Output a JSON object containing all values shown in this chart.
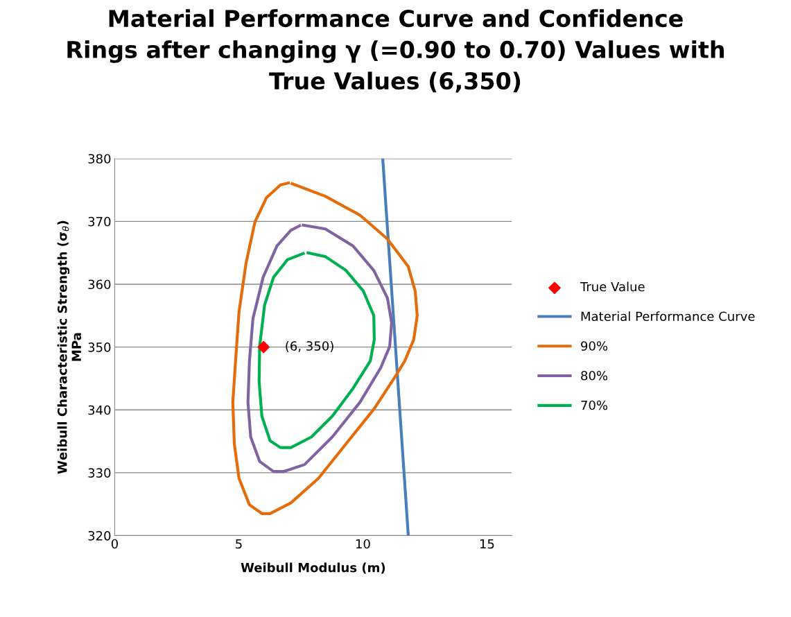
{
  "chart_data": {
    "type": "line",
    "title": "Material Performance Curve and Confidence\nRings after changing γ (=0.90 to 0.70) Values with\nTrue Values (6,350)",
    "xlabel": "Weibull Modulus (m)",
    "ylabel": "Weibull Characteristic Strength (σ$_{θ}$)\nMPa",
    "xlim": [
      0,
      16
    ],
    "xticks": [
      0,
      5,
      10,
      15
    ],
    "ylim": [
      320,
      380
    ],
    "yticks": [
      320,
      330,
      340,
      350,
      360,
      370,
      380
    ],
    "grid": "y",
    "legend": "right",
    "line_style": "solid",
    "marker": "none",
    "annotations": [
      {
        "text": "(6, 350)",
        "x": 6,
        "y": 350
      }
    ],
    "series": [
      {
        "name": "True Value",
        "type": "scatter",
        "marker": "diamond",
        "color": "#ff0000",
        "x": [
          6
        ],
        "values": [
          350
        ]
      },
      {
        "name": "Material Performance Curve",
        "color": "#4a7ebb",
        "x": [
          10.8,
          11.83
        ],
        "values": [
          380,
          320
        ]
      },
      {
        "name": "90%",
        "color": "#e46c0a",
        "x": [
          7.15,
          8.49,
          9.88,
          10.99,
          11.83,
          12.11,
          12.19,
          12.05,
          11.69,
          11.27,
          10.44,
          9.32,
          8.21,
          7.1,
          6.26,
          5.93,
          5.43,
          5.01,
          4.82,
          4.76,
          4.87,
          5.01,
          5.29,
          5.65,
          6.12,
          6.68,
          7.0
        ],
        "values": [
          376.0,
          374.0,
          371.0,
          367.2,
          362.8,
          358.9,
          355.0,
          351.2,
          347.8,
          345.1,
          340.1,
          334.6,
          329.1,
          325.2,
          323.5,
          323.5,
          324.9,
          329.1,
          334.6,
          341.2,
          347.8,
          355.6,
          363.3,
          369.9,
          373.8,
          375.8,
          376.1
        ]
      },
      {
        "name": "80%",
        "color": "#8064a2",
        "x": [
          7.6,
          8.49,
          9.6,
          10.44,
          10.99,
          11.16,
          11.08,
          10.72,
          9.88,
          8.77,
          7.65,
          6.82,
          6.4,
          5.84,
          5.48,
          5.37,
          5.43,
          5.57,
          5.98,
          6.54,
          7.1,
          7.45
        ],
        "values": [
          369.4,
          368.8,
          366.1,
          362.2,
          357.8,
          353.9,
          350.1,
          346.7,
          341.2,
          335.7,
          331.3,
          330.2,
          330.2,
          331.8,
          335.7,
          341.2,
          347.8,
          354.5,
          361.1,
          366.1,
          368.6,
          369.3
        ]
      },
      {
        "name": "70%",
        "color": "#00b050",
        "x": [
          7.79,
          8.49,
          9.32,
          10.02,
          10.44,
          10.46,
          10.3,
          9.6,
          8.77,
          7.93,
          7.1,
          6.68,
          6.26,
          5.93,
          5.82,
          5.84,
          6.04,
          6.4,
          6.96,
          7.6
        ],
        "values": [
          365.0,
          364.4,
          362.2,
          358.9,
          355.0,
          351.2,
          347.8,
          343.4,
          339.0,
          335.7,
          334.0,
          334.0,
          335.1,
          339.0,
          344.5,
          350.1,
          356.7,
          361.1,
          363.9,
          364.9
        ]
      }
    ]
  }
}
